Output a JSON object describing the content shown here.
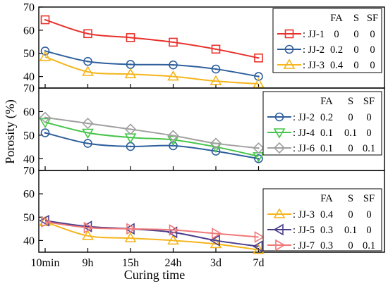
{
  "chart_data": [
    {
      "type": "line",
      "categories": [
        "10min",
        "9h",
        "15h",
        "24h",
        "3d",
        "7d"
      ],
      "ylim": [
        35,
        70
      ],
      "yticks": [
        40,
        50,
        60,
        70
      ],
      "legend_headers": [
        "FA",
        "S",
        "SF"
      ],
      "legend_placement": "top-right",
      "series": [
        {
          "name": "JJ-1",
          "params": [
            "0",
            "0",
            "0"
          ],
          "color": "#e8302a",
          "marker": "square",
          "values": [
            64.5,
            58.5,
            56.8,
            54.8,
            51.8,
            48.0
          ]
        },
        {
          "name": "JJ-2",
          "params": [
            "0.2",
            "0",
            "0"
          ],
          "color": "#2e5f9c",
          "marker": "circle",
          "values": [
            51.0,
            46.5,
            45.2,
            45.0,
            43.2,
            40.0
          ]
        },
        {
          "name": "JJ-3",
          "params": [
            "0.4",
            "0",
            "0"
          ],
          "color": "#f5b51b",
          "marker": "triangle-up",
          "values": [
            48.5,
            42.0,
            41.0,
            40.0,
            38.0,
            36.8
          ]
        }
      ]
    },
    {
      "type": "line",
      "categories": [
        "10min",
        "9h",
        "15h",
        "24h",
        "3d",
        "7d"
      ],
      "ylim": [
        35,
        70
      ],
      "yticks": [
        40,
        50,
        60,
        70
      ],
      "legend_headers": [
        "FA",
        "S",
        "SF"
      ],
      "legend_placement": "top-right",
      "series": [
        {
          "name": "JJ-2",
          "params": [
            "0.2",
            "0",
            "0"
          ],
          "color": "#2e5f9c",
          "marker": "circle",
          "values": [
            51.0,
            46.5,
            45.2,
            45.5,
            43.2,
            40.0
          ]
        },
        {
          "name": "JJ-4",
          "params": [
            "0.1",
            "0.1",
            "0"
          ],
          "color": "#45c54a",
          "marker": "triangle-down",
          "values": [
            55.5,
            51.0,
            49.0,
            48.0,
            45.0,
            41.0
          ]
        },
        {
          "name": "JJ-6",
          "params": [
            "0.1",
            "0",
            "0.1"
          ],
          "color": "#a0a0a0",
          "marker": "diamond",
          "values": [
            57.5,
            55.0,
            52.5,
            49.8,
            46.5,
            44.5
          ]
        }
      ]
    },
    {
      "type": "line",
      "categories": [
        "10min",
        "9h",
        "15h",
        "24h",
        "3d",
        "7d"
      ],
      "ylim": [
        35,
        70
      ],
      "yticks": [
        40,
        50,
        60,
        70
      ],
      "legend_headers": [
        "FA",
        "S",
        "SF"
      ],
      "legend_placement": "right",
      "series": [
        {
          "name": "JJ-3",
          "params": [
            "0.4",
            "0",
            "0"
          ],
          "color": "#f5b51b",
          "marker": "triangle-up",
          "values": [
            48.0,
            42.0,
            41.0,
            40.0,
            38.5,
            36.0
          ]
        },
        {
          "name": "JJ-5",
          "params": [
            "0.3",
            "0.1",
            "0"
          ],
          "color": "#4a3e8c",
          "marker": "triangle-left",
          "values": [
            48.5,
            46.0,
            45.0,
            43.5,
            40.0,
            37.5
          ]
        },
        {
          "name": "JJ-7",
          "params": [
            "0.3",
            "0",
            "0.1"
          ],
          "color": "#f07878",
          "marker": "triangle-right",
          "values": [
            48.0,
            45.5,
            45.0,
            44.5,
            43.0,
            41.5
          ]
        }
      ]
    }
  ],
  "axes": {
    "xlabel": "Curing time",
    "ylabel": "Porosity (%)"
  }
}
